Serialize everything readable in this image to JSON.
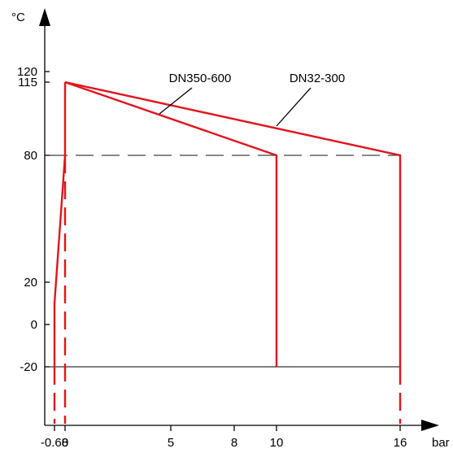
{
  "chart_data": {
    "type": "line",
    "title": "",
    "xlabel": "bar",
    "ylabel": "°C",
    "xlim": [
      -0.68,
      16
    ],
    "ylim": [
      -20,
      120
    ],
    "x_ticks": [
      {
        "value": -0.68,
        "label": "-0.68"
      },
      {
        "value": 0,
        "label": "0"
      },
      {
        "value": 5,
        "label": "5"
      },
      {
        "value": 8,
        "label": "8"
      },
      {
        "value": 10,
        "label": "10"
      },
      {
        "value": 16,
        "label": "16"
      }
    ],
    "y_ticks": [
      {
        "value": 120,
        "label": "120"
      },
      {
        "value": 115,
        "label": "115"
      },
      {
        "value": 80,
        "label": "80"
      },
      {
        "value": 20,
        "label": "20"
      },
      {
        "value": 0,
        "label": "0"
      },
      {
        "value": -20,
        "label": "-20"
      }
    ],
    "series": [
      {
        "name": "DN350-600",
        "points": [
          [
            0,
            115
          ],
          [
            10,
            80
          ],
          [
            10,
            -20
          ]
        ]
      },
      {
        "name": "DN32-300",
        "points": [
          [
            0,
            115
          ],
          [
            16,
            80
          ],
          [
            16,
            -20
          ]
        ]
      }
    ],
    "boundary": {
      "points": [
        [
          -0.68,
          -20
        ],
        [
          -0.68,
          10
        ],
        [
          0,
          80
        ],
        [
          0,
          115
        ]
      ]
    },
    "reference_lines": [
      {
        "value": 80,
        "style": "dashed"
      },
      {
        "value": -20,
        "style": "solid"
      }
    ],
    "colors": {
      "series": "#e0141e",
      "axis": "#000000",
      "reference": "#404040"
    }
  }
}
